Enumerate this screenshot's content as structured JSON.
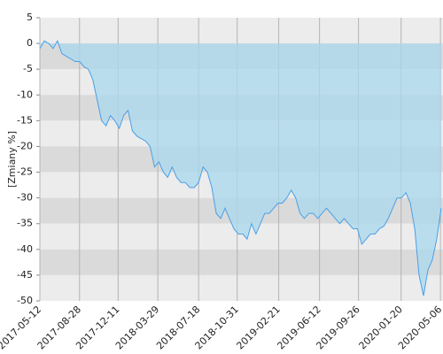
{
  "chart_data": {
    "type": "area",
    "y_label": "[Zmiany %]",
    "x": [
      "2017-05-12",
      "2017-05-24",
      "2017-06-05",
      "2017-06-17",
      "2017-06-29",
      "2017-07-11",
      "2017-07-23",
      "2017-08-04",
      "2017-08-16",
      "2017-08-28",
      "2017-09-09",
      "2017-09-21",
      "2017-10-03",
      "2017-10-15",
      "2017-10-27",
      "2017-11-08",
      "2017-11-20",
      "2017-12-02",
      "2017-12-14",
      "2017-12-26",
      "2018-01-07",
      "2018-01-19",
      "2018-01-31",
      "2018-02-12",
      "2018-02-24",
      "2018-03-08",
      "2018-03-20",
      "2018-04-01",
      "2018-04-13",
      "2018-04-25",
      "2018-05-07",
      "2018-05-19",
      "2018-05-31",
      "2018-06-12",
      "2018-06-24",
      "2018-07-06",
      "2018-07-18",
      "2018-07-30",
      "2018-08-11",
      "2018-08-23",
      "2018-09-04",
      "2018-09-16",
      "2018-09-28",
      "2018-10-10",
      "2018-10-22",
      "2018-11-03",
      "2018-11-15",
      "2018-11-27",
      "2018-12-09",
      "2018-12-21",
      "2019-01-02",
      "2019-01-14",
      "2019-01-26",
      "2019-02-07",
      "2019-02-19",
      "2019-03-03",
      "2019-03-15",
      "2019-03-27",
      "2019-04-08",
      "2019-04-20",
      "2019-05-02",
      "2019-05-14",
      "2019-05-26",
      "2019-06-07",
      "2019-06-19",
      "2019-07-01",
      "2019-07-13",
      "2019-07-25",
      "2019-08-06",
      "2019-08-18",
      "2019-08-30",
      "2019-09-11",
      "2019-09-23",
      "2019-10-05",
      "2019-10-17",
      "2019-10-29",
      "2019-11-10",
      "2019-11-22",
      "2019-12-04",
      "2019-12-16",
      "2019-12-28",
      "2020-01-09",
      "2020-01-21",
      "2020-02-02",
      "2020-02-14",
      "2020-02-26",
      "2020-03-09",
      "2020-03-21",
      "2020-04-02",
      "2020-04-14",
      "2020-04-26",
      "2020-05-08"
    ],
    "series": [
      {
        "color": "#4a9fe6",
        "fill": "#a9d8ee",
        "values": [
          -1,
          0.5,
          0,
          -1,
          0.5,
          -2,
          -2.5,
          -3,
          -3.5,
          -3.5,
          -4.5,
          -5,
          -7,
          -11,
          -15,
          -16,
          -14,
          -15,
          -16.5,
          -14,
          -13,
          -17,
          -18,
          -18.5,
          -19,
          -20,
          -24,
          -23,
          -25,
          -26,
          -24,
          -26,
          -27,
          -27,
          -28,
          -28,
          -27,
          -24,
          -25,
          -28,
          -33,
          -34,
          -32,
          -34,
          -36,
          -37,
          -37,
          -38,
          -35,
          -37,
          -35,
          -33,
          -33,
          -32,
          -31,
          -31,
          -30,
          -28.5,
          -30,
          -33,
          -34,
          -33,
          -33,
          -34,
          -33,
          -32,
          -33,
          -34,
          -35,
          -34,
          -35,
          -36,
          -36,
          -39,
          -38,
          -37,
          -37,
          -36,
          -35.5,
          -34,
          -32,
          -30,
          -30,
          -29,
          -31,
          -36,
          -45,
          -49,
          -44,
          -42,
          -38,
          -32
        ]
      }
    ],
    "xlim": [
      "2017-05-12",
      "2020-05-13"
    ],
    "xticks": [
      "2017-05-12",
      "2017-08-28",
      "2017-12-11",
      "2018-03-29",
      "2018-07-18",
      "2018-10-31",
      "2019-02-21",
      "2019-06-12",
      "2019-09-26",
      "2020-01-20",
      "2020-05-06"
    ],
    "ylim": [
      -50,
      5
    ],
    "yticks": [
      -50,
      -45,
      -40,
      -35,
      -30,
      -25,
      -20,
      -15,
      -10,
      -5,
      0,
      5
    ],
    "band_colors": [
      "#ececec",
      "#dadada"
    ],
    "grid_color": "#b4b4b4"
  }
}
